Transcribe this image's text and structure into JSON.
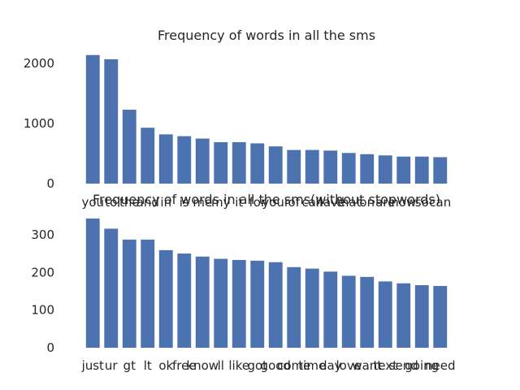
{
  "colors": {
    "bar": "#4c72b0",
    "text": "#262626",
    "background": "#ffffff"
  },
  "chart_data": [
    {
      "type": "bar",
      "title": "Frequency of words in all the sms",
      "xlabel": "",
      "ylabel": "",
      "ylim": [
        0,
        2150
      ],
      "yticks": [
        0,
        1000,
        2000
      ],
      "grid": false,
      "categories": [
        "you",
        "to",
        "the",
        "and",
        "in",
        "is",
        "me",
        "my",
        "it",
        "for",
        "your",
        "of",
        "call",
        "have",
        "that",
        "on",
        "are",
        "now",
        "so",
        "can"
      ],
      "values": [
        2140,
        2070,
        1230,
        930,
        820,
        790,
        750,
        690,
        690,
        670,
        620,
        560,
        560,
        550,
        510,
        490,
        470,
        450,
        450,
        440
      ]
    },
    {
      "type": "bar",
      "title": "Frequency of words in all the sms(without stopwords)",
      "xlabel": "",
      "ylabel": "",
      "ylim": [
        0,
        345
      ],
      "yticks": [
        0,
        100,
        200,
        300
      ],
      "grid": false,
      "categories": [
        "just",
        "ur",
        "gt",
        "lt",
        "ok",
        "free",
        "know",
        "ll",
        "like",
        "got",
        "good",
        "come",
        "time",
        "day",
        "love",
        "want",
        "text",
        "send",
        "going",
        "need"
      ],
      "values": [
        343,
        316,
        287,
        287,
        259,
        250,
        242,
        236,
        233,
        231,
        227,
        214,
        210,
        202,
        191,
        188,
        176,
        171,
        166,
        164
      ]
    }
  ]
}
